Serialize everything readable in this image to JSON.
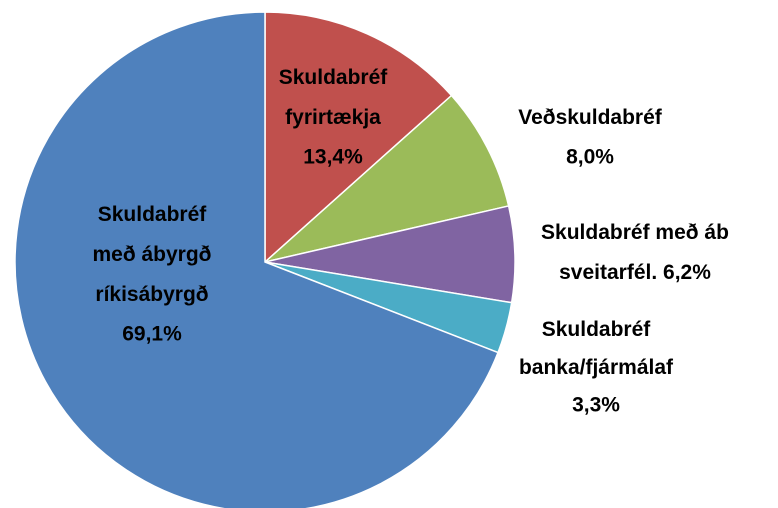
{
  "chart_data": {
    "type": "pie",
    "categories": [
      [
        "Skuldabréf",
        "fyrirtækja"
      ],
      [
        "Veðskuldabréf"
      ],
      [
        "Skuldabréf með áb",
        "sveitarfél."
      ],
      [
        "Skuldabréf",
        "banka/fjármálaf"
      ],
      [
        "Skuldabréf",
        "með ábyrgð",
        "ríkisábyrgð"
      ]
    ],
    "values": [
      13.4,
      8.0,
      6.2,
      3.3,
      69.1
    ],
    "value_labels": [
      "13,4%",
      "8,0%",
      "6,2%",
      "3,3%",
      "69,1%"
    ],
    "colors": [
      "#c0504d",
      "#9bbb59",
      "#8064a2",
      "#4bacc6",
      "#4f81bd"
    ]
  }
}
